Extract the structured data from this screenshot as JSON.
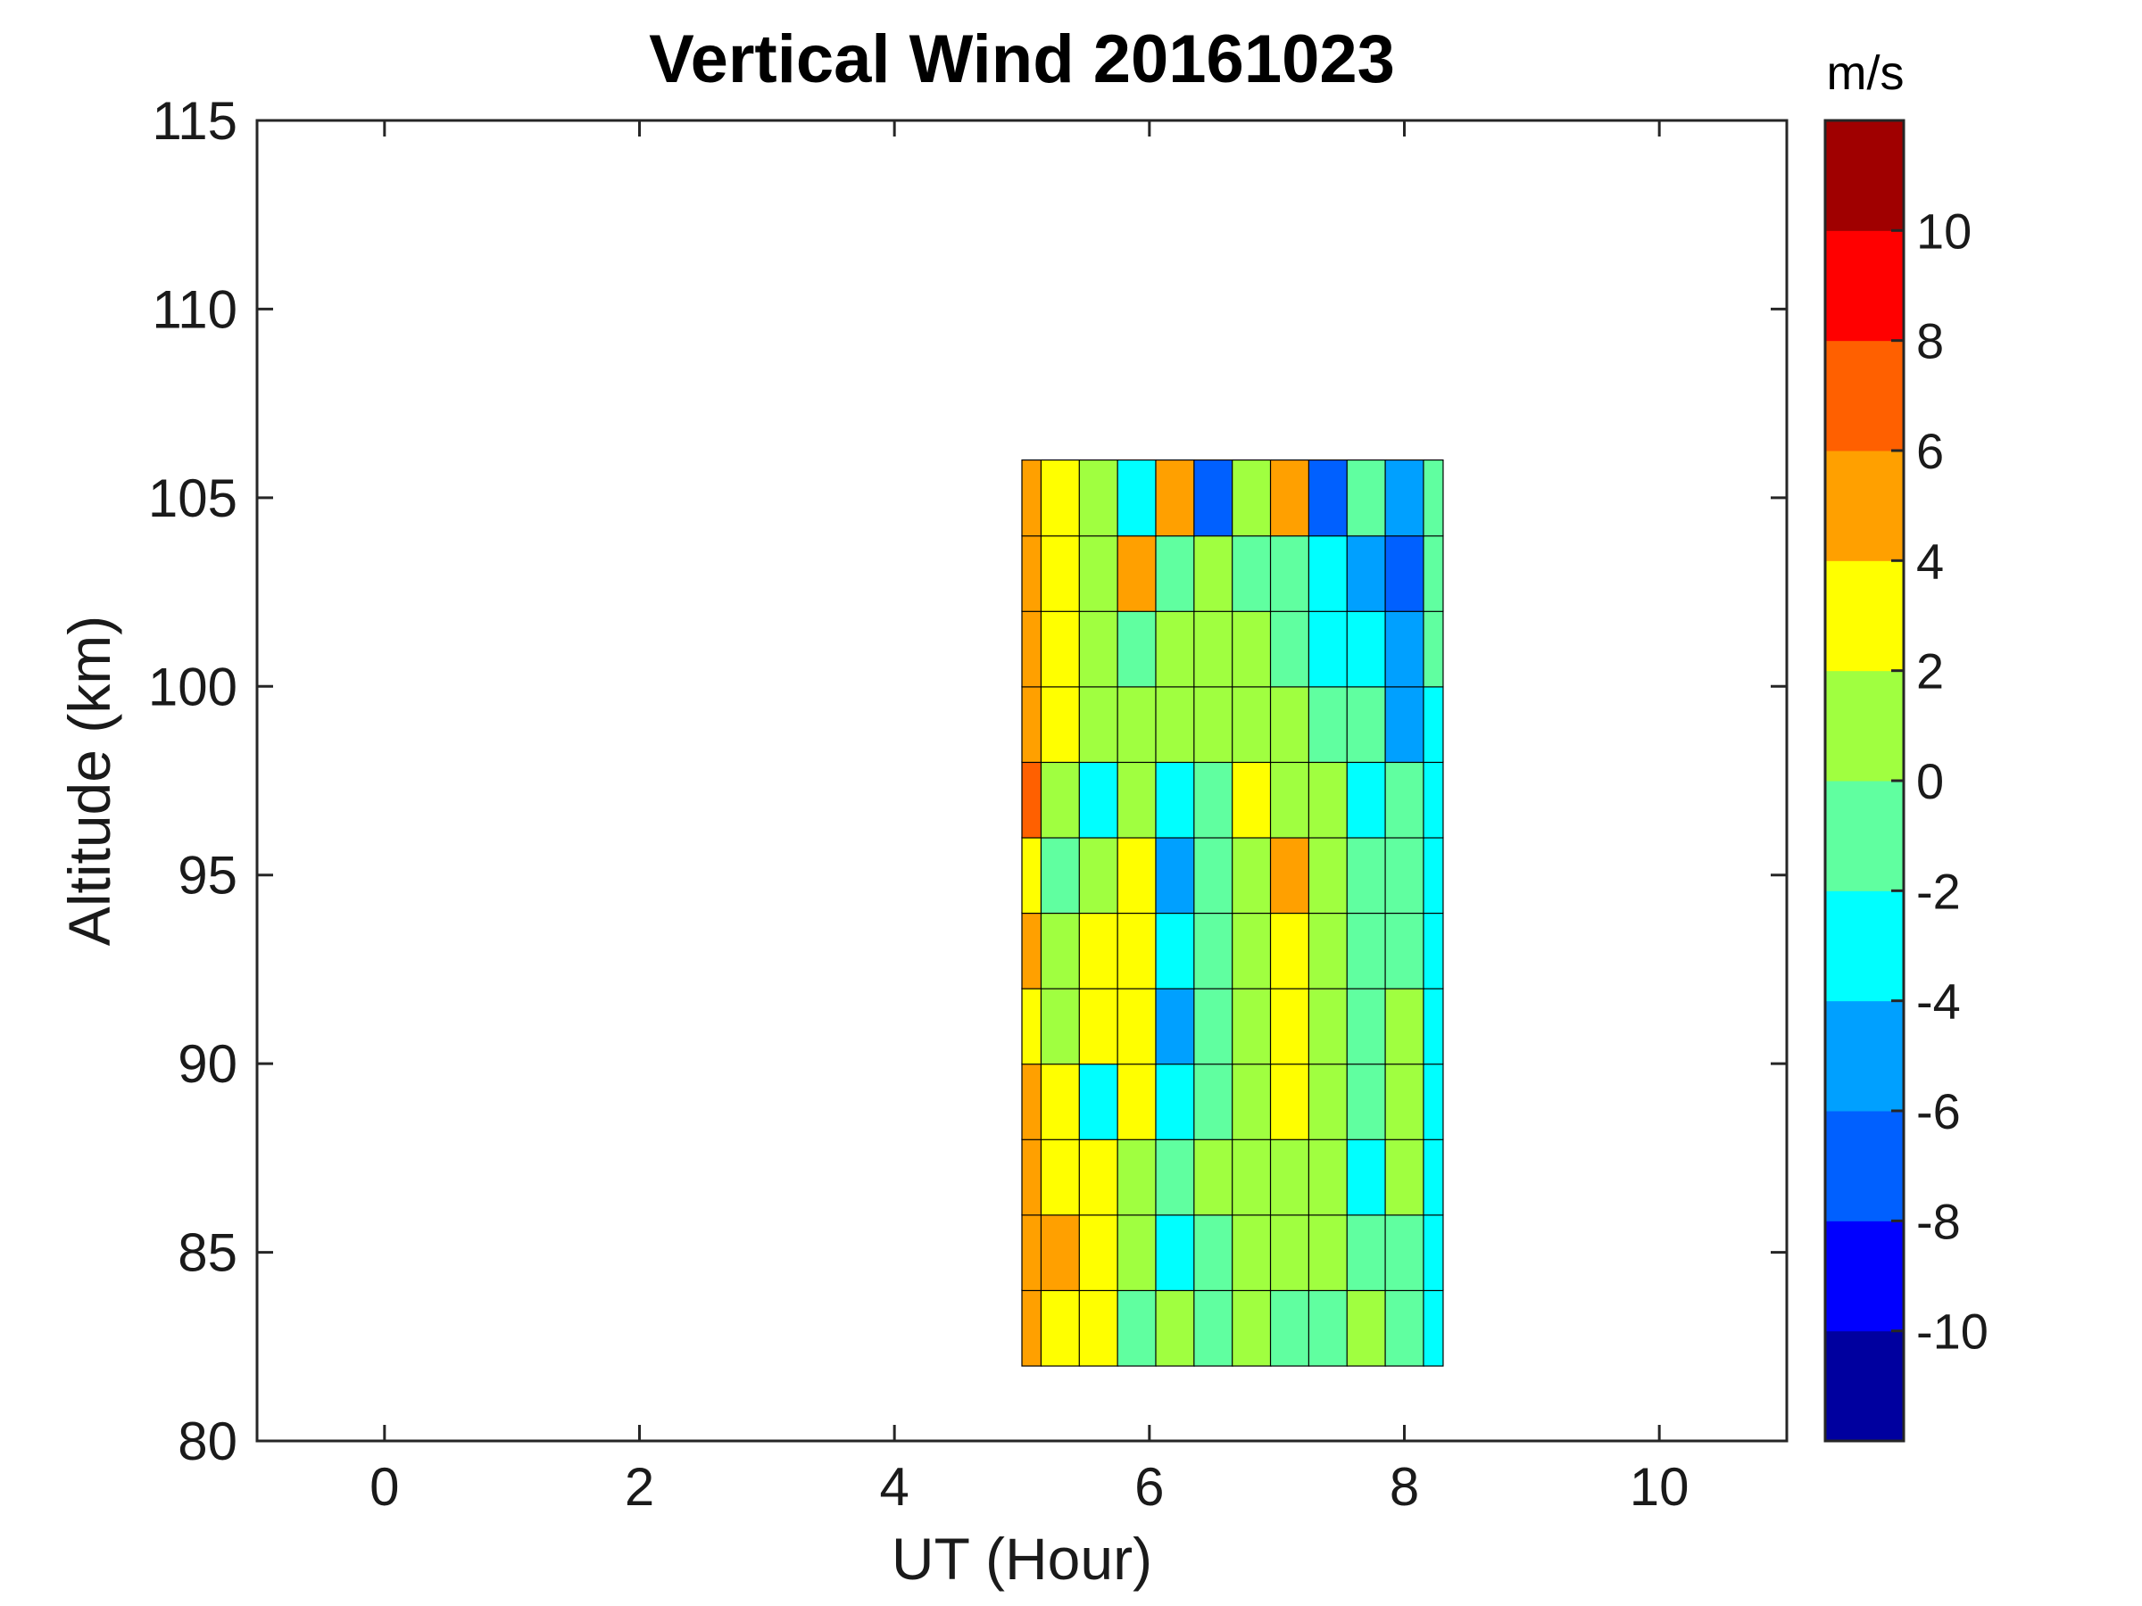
{
  "chart_data": {
    "type": "heatmap",
    "subtype": "filled-contour",
    "title": "Vertical Wind 20161023",
    "xlabel": "UT (Hour)",
    "ylabel": "Altitude (km)",
    "xlim": [
      -1,
      11
    ],
    "ylim": [
      80,
      115
    ],
    "xticks": [
      0,
      2,
      4,
      6,
      8,
      10
    ],
    "yticks": [
      80,
      85,
      90,
      95,
      100,
      105,
      110,
      115
    ],
    "grid": false,
    "colorbar": {
      "units": "m/s",
      "range": [
        -12,
        12
      ],
      "levels": [
        -12,
        -10,
        -8,
        -6,
        -4,
        -2,
        0,
        2,
        4,
        6,
        8,
        10,
        12
      ],
      "ticks": [
        10,
        8,
        6,
        4,
        2,
        0,
        -2,
        -4,
        -6,
        -8,
        -10
      ],
      "tick_labels": [
        "10",
        "8",
        "6",
        "4",
        "2",
        "0",
        "-2",
        "-4",
        "-6",
        "-8",
        "-10"
      ],
      "colors": [
        "#00009f",
        "#0000ff",
        "#0060ff",
        "#00a0ff",
        "#00ffff",
        "#60ffa0",
        "#a0ff40",
        "#ffff00",
        "#ffa000",
        "#ff6000",
        "#ff0000",
        "#a00000"
      ]
    },
    "data_extent": {
      "x_range": [
        5.0,
        8.3
      ],
      "altitude_range": [
        81.7,
        107.4
      ]
    },
    "x_hours": [
      5.0,
      5.3,
      5.6,
      5.9,
      6.2,
      6.5,
      6.8,
      7.1,
      7.4,
      7.7,
      8.0,
      8.3
    ],
    "altitudes_km": [
      83,
      85,
      87,
      89,
      91,
      93,
      95,
      97,
      99,
      101,
      103,
      105
    ],
    "wind_ms": [
      [
        4,
        3,
        2,
        -2,
        0,
        -1,
        0,
        -1,
        -1,
        0,
        -1,
        -3
      ],
      [
        5,
        4,
        3,
        1,
        -3,
        -1,
        0,
        0,
        0,
        -2,
        -1,
        -4
      ],
      [
        5,
        2,
        2,
        0,
        -2,
        0,
        1,
        1,
        0,
        -3,
        0,
        -3
      ],
      [
        4,
        3,
        -3,
        2,
        -3,
        -1,
        1,
        2,
        0,
        -1,
        0,
        -3
      ],
      [
        3,
        0,
        2,
        3,
        -5,
        -2,
        1,
        3,
        1,
        -1,
        0,
        -3
      ],
      [
        4,
        1,
        3,
        2,
        -4,
        -1,
        1,
        3,
        0,
        -1,
        -2,
        -3
      ],
      [
        2,
        -2,
        1,
        3,
        -6,
        -1,
        1,
        4,
        0,
        -2,
        -1,
        -3
      ],
      [
        6,
        0,
        -3,
        1,
        -4,
        -1,
        2,
        1,
        0,
        -3,
        -2,
        -3
      ],
      [
        4,
        3,
        0,
        1,
        0,
        1,
        1,
        0,
        -2,
        -1,
        -5,
        -3
      ],
      [
        5,
        2,
        0,
        -2,
        1,
        1,
        0,
        -1,
        -4,
        -3,
        -6,
        -2
      ],
      [
        5,
        2,
        0,
        5,
        -2,
        0,
        -1,
        -2,
        -4,
        -5,
        -8,
        -1
      ],
      [
        4,
        2,
        0,
        -3,
        4,
        -8,
        0,
        4,
        -8,
        -2,
        -5,
        -2
      ]
    ]
  }
}
